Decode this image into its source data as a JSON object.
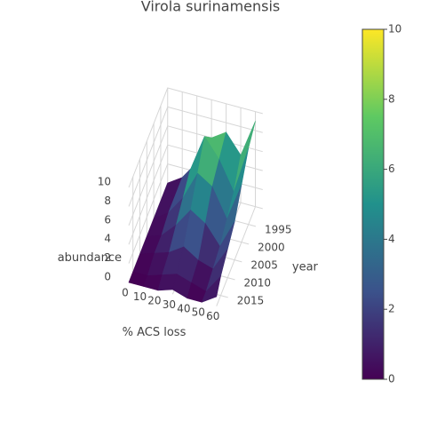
{
  "chart_data": {
    "type": "surface",
    "title": "Virola surinamensis",
    "x_label": "% ACS loss",
    "y_label": "year",
    "z_label": "abundance",
    "x": [
      0,
      10,
      20,
      30,
      40,
      50,
      60
    ],
    "y": [
      1990,
      1995,
      2000,
      2005,
      2010,
      2015,
      2018
    ],
    "z": [
      [
        0,
        1,
        3,
        6,
        7,
        5,
        9
      ],
      [
        0,
        1,
        4,
        8,
        6,
        3,
        8
      ],
      [
        0,
        1,
        3,
        6,
        5,
        2,
        6
      ],
      [
        0,
        0.5,
        2,
        4,
        3,
        1,
        4
      ],
      [
        0,
        0.5,
        1,
        2,
        1,
        0.5,
        3
      ],
      [
        0,
        0,
        0.5,
        1,
        0.5,
        0,
        2
      ],
      [
        0,
        0,
        0,
        0.5,
        0,
        0,
        1
      ]
    ],
    "xlim": [
      0,
      65
    ],
    "xticks": [
      0,
      10,
      20,
      30,
      40,
      50,
      60
    ],
    "ylim": [
      1990,
      2018
    ],
    "yticks": [
      1995,
      2000,
      2005,
      2010,
      2015
    ],
    "zlim": [
      0,
      10
    ],
    "zticks": [
      0,
      2,
      4,
      6,
      8,
      10
    ],
    "colorscale": [
      [
        0,
        "#440154"
      ],
      [
        0.25,
        "#3b528b"
      ],
      [
        0.5,
        "#21918c"
      ],
      [
        0.75,
        "#5ec962"
      ],
      [
        1,
        "#fde725"
      ]
    ],
    "colorbar": {
      "ticks": [
        0,
        2,
        4,
        6,
        8,
        10
      ],
      "lim": [
        0,
        10
      ]
    },
    "grid": true
  }
}
